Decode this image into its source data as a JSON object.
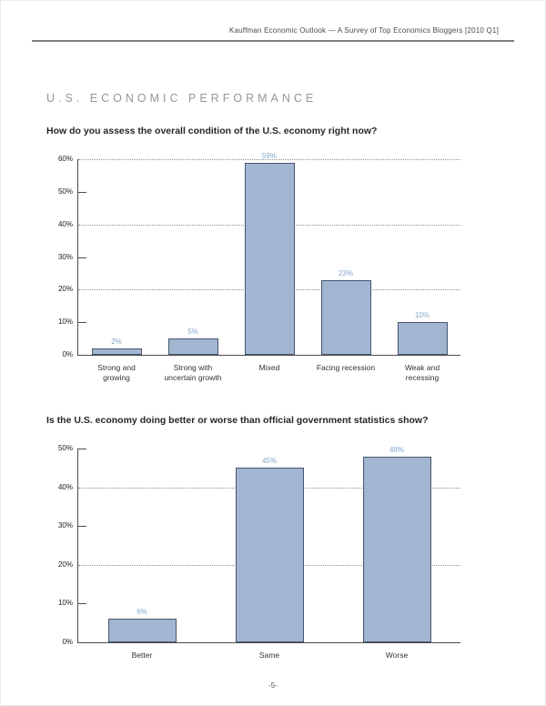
{
  "page": {
    "header_text": "Kauffman Economic Outlook — A Survey of Top Economics Bloggers [2010 Q1]",
    "section_title": "U.S. ECONOMIC PERFORMANCE",
    "page_number": "-5-"
  },
  "colors": {
    "bar_fill": "#a3b6d1",
    "bar_border": "#46556b",
    "value_label": "#83a6ca",
    "axis": "#4d4d4d",
    "gridline": "#8f8f8f",
    "rule": "#7d7d7d"
  },
  "chart_data": [
    {
      "type": "bar",
      "question": "How do you assess the overall condition of the U.S. economy right now?",
      "categories": [
        "Strong and\ngrowing",
        "Strong with\nuncertain growth",
        "Mixed",
        "Facing recession",
        "Weak and\nrecessing"
      ],
      "values": [
        2,
        5,
        59,
        23,
        10
      ],
      "value_labels": [
        "2%",
        "5%",
        "59%",
        "23%",
        "10%"
      ],
      "title": "",
      "xlabel": "",
      "ylabel": "",
      "ylim": [
        0,
        60
      ],
      "tick_step": 10,
      "grid_every": 20,
      "tick_labels": [
        "0%",
        "10%",
        "20%",
        "30%",
        "40%",
        "50%",
        "60%"
      ],
      "grid": true,
      "legend_position": "none"
    },
    {
      "type": "bar",
      "question": "Is the U.S. economy doing better or worse than official government statistics show?",
      "categories": [
        "Better",
        "Same",
        "Worse"
      ],
      "values": [
        6,
        45,
        48
      ],
      "value_labels": [
        "6%",
        "45%",
        "48%"
      ],
      "title": "",
      "xlabel": "",
      "ylabel": "",
      "ylim": [
        0,
        50
      ],
      "tick_step": 10,
      "grid_every": 20,
      "tick_labels": [
        "0%",
        "10%",
        "20%",
        "30%",
        "40%",
        "50%"
      ],
      "grid": true,
      "legend_position": "none"
    }
  ]
}
